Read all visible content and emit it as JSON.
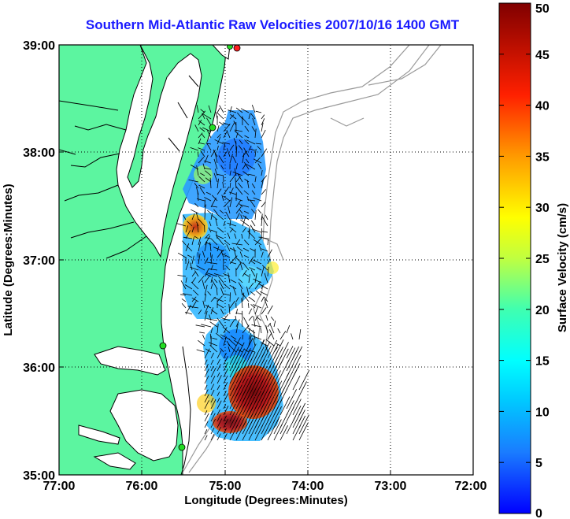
{
  "title": "Southern Mid-Atlantic Raw Velocities 2007/10/16 1400 GMT",
  "x_axis": {
    "label": "Longitude (Degrees:Minutes)",
    "ticks": [
      "77:00",
      "76:00",
      "75:00",
      "74:00",
      "73:00",
      "72:00"
    ]
  },
  "y_axis": {
    "label": "Latitude (Degrees:Minutes)",
    "ticks": [
      "39:00",
      "38:00",
      "37:00",
      "36:00",
      "35:00"
    ]
  },
  "colorbar": {
    "label": "Surface Velocity (cm/s)",
    "ticks": [
      "50",
      "45",
      "40",
      "35",
      "30",
      "25",
      "20",
      "15",
      "10",
      "5",
      "0"
    ],
    "min": 0,
    "max": 50
  },
  "colors": {
    "land": "#5cf5a0",
    "coast": "#000000",
    "title": "#1a1aff",
    "station_green": "#22dd22",
    "station_red": "#ff2020",
    "bathymetry": "#9a9a9a"
  }
}
